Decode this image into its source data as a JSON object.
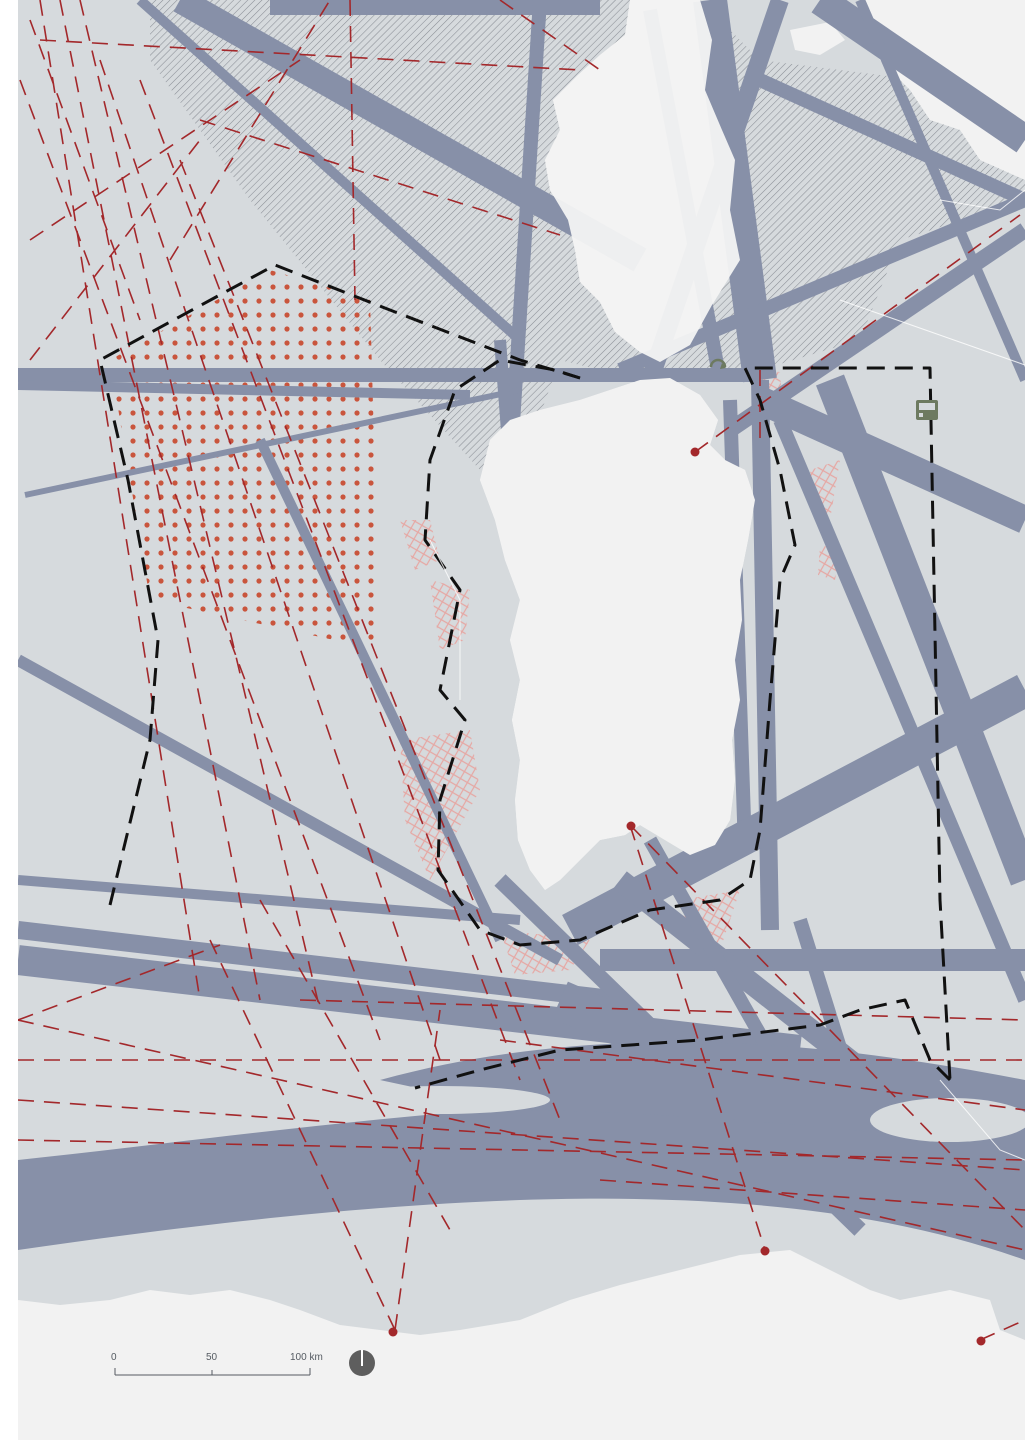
{
  "map": {
    "colors": {
      "sea": "#d6dadd",
      "land": "#f2f2f2",
      "shipping_lane": "#8790a8",
      "cable": "#a3282b",
      "boundary": "#111111",
      "dot_field": "#c9553d",
      "hatch": "#4a4f5a",
      "crosshatch": "#e6a7a3",
      "compass": "#5e5e5e",
      "icon_green": "#6d7a60"
    },
    "scale_bar": {
      "labels": [
        "0",
        "50",
        "100 km"
      ]
    },
    "icons": [
      "compass-icon",
      "platform-icon",
      "recycle-icon"
    ]
  }
}
